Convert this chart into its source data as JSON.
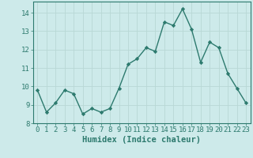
{
  "x": [
    0,
    1,
    2,
    3,
    4,
    5,
    6,
    7,
    8,
    9,
    10,
    11,
    12,
    13,
    14,
    15,
    16,
    17,
    18,
    19,
    20,
    21,
    22,
    23
  ],
  "y": [
    9.8,
    8.6,
    9.1,
    9.8,
    9.6,
    8.5,
    8.8,
    8.6,
    8.8,
    9.9,
    11.2,
    11.5,
    12.1,
    11.9,
    13.5,
    13.3,
    14.2,
    13.1,
    11.3,
    12.4,
    12.1,
    10.7,
    9.9,
    9.1
  ],
  "line_color": "#2d7a6e",
  "marker": "D",
  "marker_size": 2.2,
  "bg_color": "#cdeaea",
  "grid_color": "#b8d8d5",
  "xlabel": "Humidex (Indice chaleur)",
  "xlim": [
    -0.5,
    23.5
  ],
  "ylim": [
    8,
    14.6
  ],
  "yticks": [
    8,
    9,
    10,
    11,
    12,
    13,
    14
  ],
  "xticks": [
    0,
    1,
    2,
    3,
    4,
    5,
    6,
    7,
    8,
    9,
    10,
    11,
    12,
    13,
    14,
    15,
    16,
    17,
    18,
    19,
    20,
    21,
    22,
    23
  ],
  "tick_color": "#2d7a6e",
  "label_color": "#2d7a6e",
  "axis_color": "#2d7a6e",
  "xlabel_fontsize": 7.5,
  "tick_fontsize": 6.5,
  "line_width": 1.0
}
